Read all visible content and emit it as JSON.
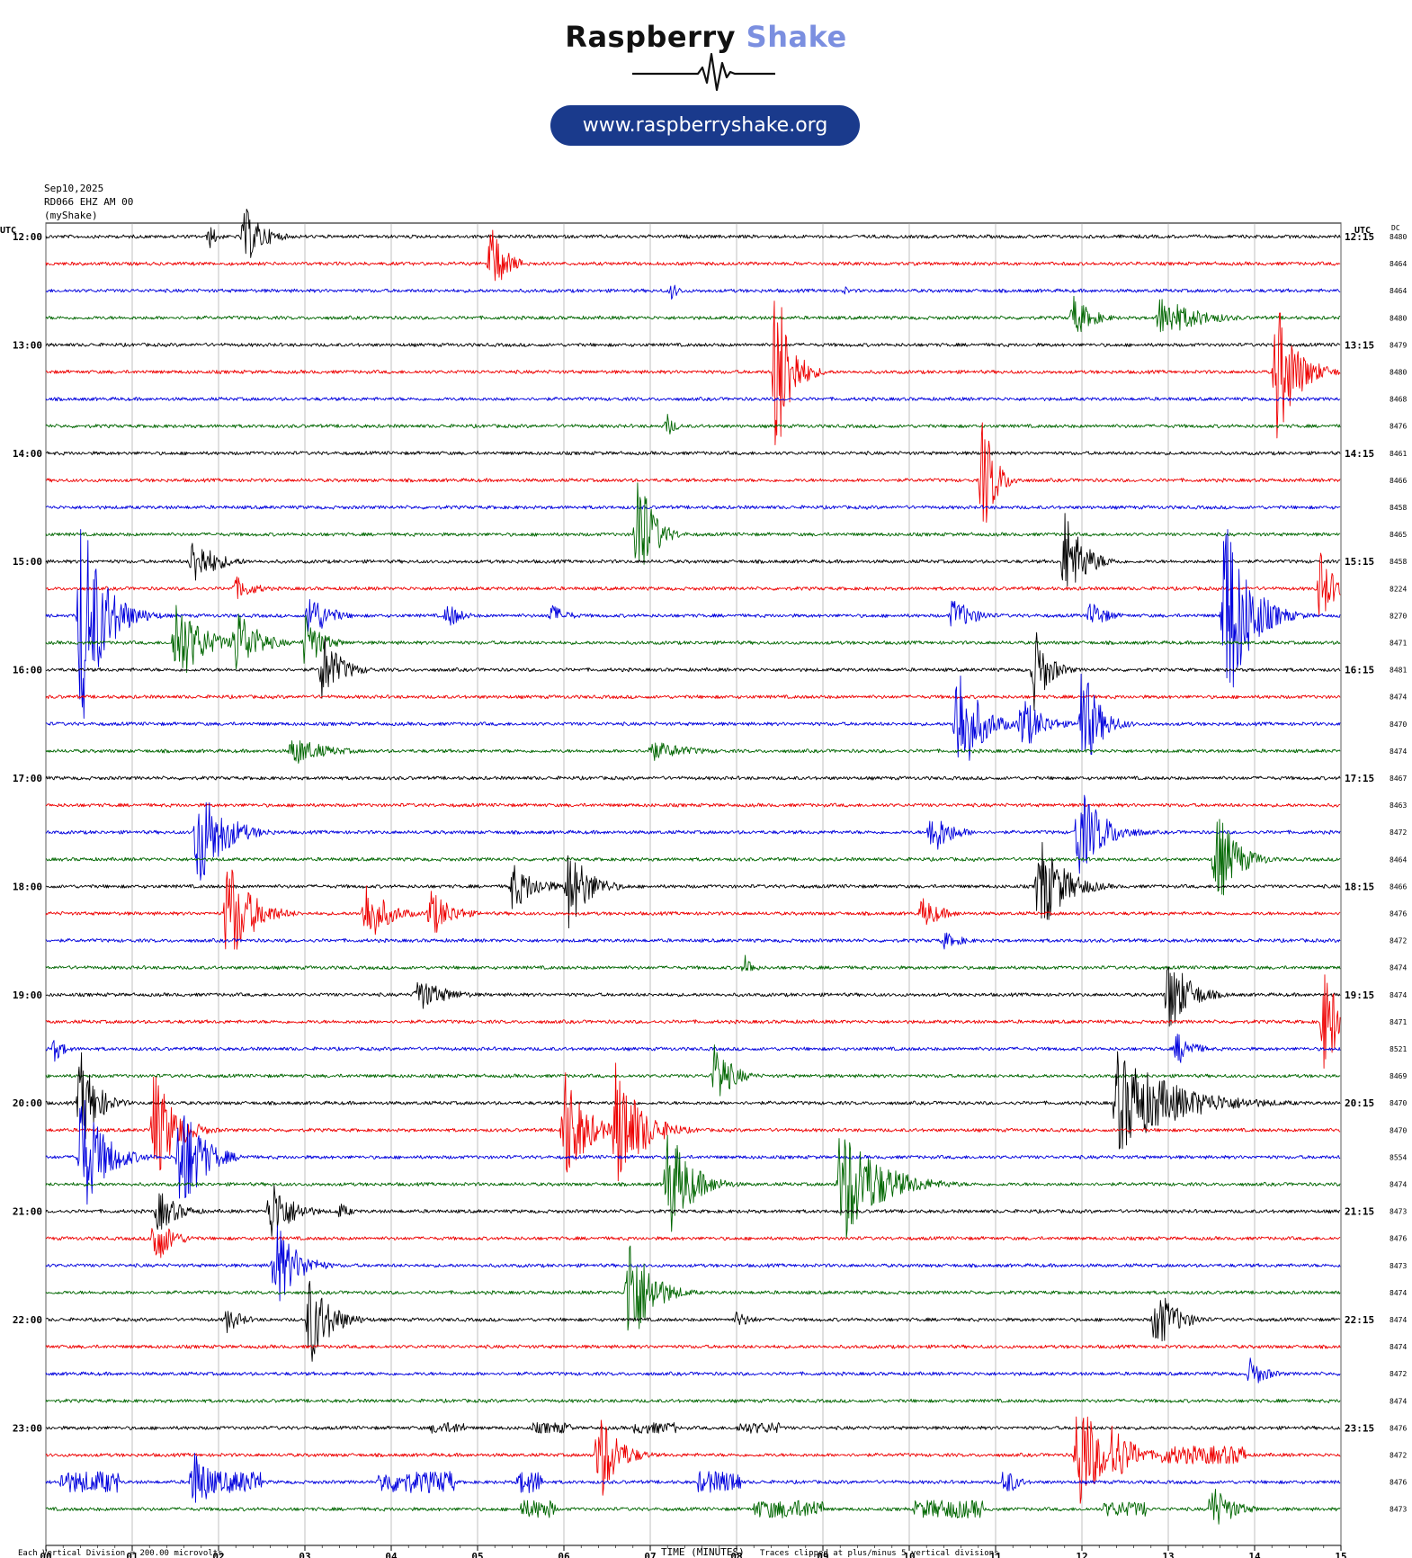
{
  "logo": {
    "word1": "Raspberry",
    "word2": "Shake",
    "url": "www.raspberryshake.org",
    "colors": {
      "word1": "#111111",
      "word2": "#7b8fe0",
      "pill": "#1a3a8c"
    }
  },
  "header": {
    "date": "Sep10,2025",
    "station": "RD066 EHZ AM 00",
    "source": "(myShake)"
  },
  "chart_data": {
    "type": "line",
    "title": "",
    "left_axis_label": "UTC",
    "right_axis_label": "UTC",
    "dc_label": "DC",
    "xlabel": "TIME (MINUTES)",
    "x_range": [
      0,
      15
    ],
    "x_ticks": [
      "00",
      "01",
      "02",
      "03",
      "04",
      "05",
      "06",
      "07",
      "08",
      "09",
      "10",
      "11",
      "12",
      "13",
      "14",
      "15"
    ],
    "grid": true,
    "trace_colors": [
      "#000000",
      "#ee0000",
      "#0000dd",
      "#006600"
    ],
    "left_hour_labels": [
      "12:00",
      "13:00",
      "14:00",
      "15:00",
      "16:00",
      "17:00",
      "18:00",
      "19:00",
      "20:00",
      "21:00",
      "22:00",
      "23:00"
    ],
    "right_hour_labels": [
      "12:15",
      "13:15",
      "14:15",
      "15:15",
      "16:15",
      "17:15",
      "18:15",
      "19:15",
      "20:15",
      "21:15",
      "22:15",
      "23:15"
    ],
    "dc_values": [
      "8480",
      "8464",
      "8464",
      "8480",
      "8479",
      "8480",
      "8468",
      "8476",
      "8461",
      "8466",
      "8458",
      "8465",
      "8458",
      "8224",
      "8270",
      "8471",
      "8481",
      "8474",
      "8470",
      "8474",
      "8467",
      "8463",
      "8472",
      "8464",
      "8466",
      "8476",
      "8472",
      "8474",
      "8474",
      "8471",
      "8521",
      "8469",
      "8470",
      "8470",
      "8554",
      "8474",
      "8473",
      "8476",
      "8473",
      "8474",
      "8474",
      "8474",
      "8472",
      "8474",
      "8476",
      "8472",
      "8476",
      "8473"
    ],
    "events": [
      {
        "row": 0,
        "t": 2.3,
        "amp": 35,
        "dur": 0.45
      },
      {
        "row": 0,
        "t": 1.9,
        "amp": 14,
        "dur": 0.2
      },
      {
        "row": 1,
        "t": 5.15,
        "amp": 45,
        "dur": 0.35
      },
      {
        "row": 2,
        "t": 7.25,
        "amp": 10,
        "dur": 0.2
      },
      {
        "row": 2,
        "t": 9.25,
        "amp": 6,
        "dur": 0.15
      },
      {
        "row": 3,
        "t": 11.9,
        "amp": 25,
        "dur": 0.45
      },
      {
        "row": 3,
        "t": 12.9,
        "amp": 25,
        "dur": 0.9
      },
      {
        "row": 5,
        "t": 8.45,
        "amp": 120,
        "dur": 0.35
      },
      {
        "row": 5,
        "t": 14.25,
        "amp": 85,
        "dur": 0.5
      },
      {
        "row": 7,
        "t": 7.2,
        "amp": 14,
        "dur": 0.2
      },
      {
        "row": 9,
        "t": 10.85,
        "amp": 75,
        "dur": 0.3
      },
      {
        "row": 11,
        "t": 6.85,
        "amp": 85,
        "dur": 0.35
      },
      {
        "row": 12,
        "t": 1.7,
        "amp": 30,
        "dur": 0.55
      },
      {
        "row": 12,
        "t": 11.8,
        "amp": 60,
        "dur": 0.45
      },
      {
        "row": 13,
        "t": 14.75,
        "amp": 45,
        "dur": 0.35
      },
      {
        "row": 13,
        "t": 2.2,
        "amp": 14,
        "dur": 0.5
      },
      {
        "row": 14,
        "t": 0.4,
        "amp": 135,
        "dur": 0.55
      },
      {
        "row": 14,
        "t": 3.05,
        "amp": 30,
        "dur": 0.45
      },
      {
        "row": 14,
        "t": 4.65,
        "amp": 16,
        "dur": 0.35
      },
      {
        "row": 14,
        "t": 5.85,
        "amp": 14,
        "dur": 0.4
      },
      {
        "row": 14,
        "t": 10.5,
        "amp": 20,
        "dur": 0.55
      },
      {
        "row": 14,
        "t": 12.1,
        "amp": 18,
        "dur": 0.4
      },
      {
        "row": 14,
        "t": 13.65,
        "amp": 135,
        "dur": 0.55
      },
      {
        "row": 15,
        "t": 1.5,
        "amp": 55,
        "dur": 0.6
      },
      {
        "row": 15,
        "t": 2.2,
        "amp": 45,
        "dur": 0.5
      },
      {
        "row": 15,
        "t": 3.0,
        "amp": 35,
        "dur": 0.4
      },
      {
        "row": 16,
        "t": 3.2,
        "amp": 42,
        "dur": 0.45
      },
      {
        "row": 16,
        "t": 11.45,
        "amp": 50,
        "dur": 0.35
      },
      {
        "row": 18,
        "t": 10.55,
        "amp": 80,
        "dur": 0.5
      },
      {
        "row": 18,
        "t": 11.3,
        "amp": 35,
        "dur": 0.5
      },
      {
        "row": 18,
        "t": 12.0,
        "amp": 70,
        "dur": 0.4
      },
      {
        "row": 19,
        "t": 2.85,
        "amp": 18,
        "dur": 0.8
      },
      {
        "row": 19,
        "t": 7.0,
        "amp": 12,
        "dur": 1.0
      },
      {
        "row": 22,
        "t": 1.75,
        "amp": 70,
        "dur": 0.6
      },
      {
        "row": 22,
        "t": 10.25,
        "amp": 30,
        "dur": 0.45
      },
      {
        "row": 22,
        "t": 11.95,
        "amp": 55,
        "dur": 0.6
      },
      {
        "row": 23,
        "t": 13.55,
        "amp": 60,
        "dur": 0.5
      },
      {
        "row": 24,
        "t": 5.4,
        "amp": 28,
        "dur": 0.6
      },
      {
        "row": 24,
        "t": 6.05,
        "amp": 50,
        "dur": 0.5
      },
      {
        "row": 24,
        "t": 11.5,
        "amp": 60,
        "dur": 0.6
      },
      {
        "row": 25,
        "t": 2.1,
        "amp": 70,
        "dur": 0.55
      },
      {
        "row": 25,
        "t": 3.7,
        "amp": 40,
        "dur": 0.5
      },
      {
        "row": 25,
        "t": 4.45,
        "amp": 30,
        "dur": 0.5
      },
      {
        "row": 25,
        "t": 10.15,
        "amp": 20,
        "dur": 0.45
      },
      {
        "row": 26,
        "t": 10.4,
        "amp": 10,
        "dur": 0.5
      },
      {
        "row": 27,
        "t": 8.1,
        "amp": 15,
        "dur": 0.2
      },
      {
        "row": 28,
        "t": 4.3,
        "amp": 20,
        "dur": 0.7
      },
      {
        "row": 28,
        "t": 13.0,
        "amp": 50,
        "dur": 0.5
      },
      {
        "row": 29,
        "t": 14.8,
        "amp": 60,
        "dur": 0.5
      },
      {
        "row": 30,
        "t": 0.1,
        "amp": 15,
        "dur": 0.25
      },
      {
        "row": 30,
        "t": 13.1,
        "amp": 20,
        "dur": 0.4
      },
      {
        "row": 31,
        "t": 7.75,
        "amp": 40,
        "dur": 0.4
      },
      {
        "row": 32,
        "t": 0.4,
        "amp": 60,
        "dur": 0.4
      },
      {
        "row": 32,
        "t": 12.4,
        "amp": 60,
        "dur": 1.4
      },
      {
        "row": 33,
        "t": 1.25,
        "amp": 70,
        "dur": 0.5
      },
      {
        "row": 33,
        "t": 6.0,
        "amp": 75,
        "dur": 0.5
      },
      {
        "row": 33,
        "t": 6.6,
        "amp": 80,
        "dur": 0.6
      },
      {
        "row": 34,
        "t": 0.4,
        "amp": 80,
        "dur": 0.55
      },
      {
        "row": 34,
        "t": 1.55,
        "amp": 80,
        "dur": 0.5
      },
      {
        "row": 35,
        "t": 7.2,
        "amp": 70,
        "dur": 0.55
      },
      {
        "row": 35,
        "t": 9.2,
        "amp": 75,
        "dur": 0.9
      },
      {
        "row": 36,
        "t": 1.3,
        "amp": 25,
        "dur": 0.5
      },
      {
        "row": 36,
        "t": 2.6,
        "amp": 40,
        "dur": 0.5
      },
      {
        "row": 36,
        "t": 3.4,
        "amp": 10,
        "dur": 0.3
      },
      {
        "row": 37,
        "t": 1.25,
        "amp": 35,
        "dur": 0.4
      },
      {
        "row": 38,
        "t": 2.65,
        "amp": 55,
        "dur": 0.5
      },
      {
        "row": 39,
        "t": 6.75,
        "amp": 80,
        "dur": 0.5
      },
      {
        "row": 40,
        "t": 3.05,
        "amp": 55,
        "dur": 0.5
      },
      {
        "row": 40,
        "t": 2.1,
        "amp": 15,
        "dur": 0.4
      },
      {
        "row": 40,
        "t": 8.0,
        "amp": 10,
        "dur": 0.4
      },
      {
        "row": 40,
        "t": 12.85,
        "amp": 40,
        "dur": 0.5
      },
      {
        "row": 42,
        "t": 13.95,
        "amp": 18,
        "dur": 0.4
      },
      {
        "row": 44,
        "t": 4.65,
        "amp": 6,
        "dur": 0.4,
        "band": true
      },
      {
        "row": 44,
        "t": 5.85,
        "amp": 6,
        "dur": 0.45,
        "band": true
      },
      {
        "row": 44,
        "t": 7.05,
        "amp": 6,
        "dur": 0.5,
        "band": true
      },
      {
        "row": 44,
        "t": 8.25,
        "amp": 6,
        "dur": 0.5,
        "band": true
      },
      {
        "row": 45,
        "t": 6.4,
        "amp": 60,
        "dur": 0.45
      },
      {
        "row": 45,
        "t": 11.95,
        "amp": 80,
        "dur": 0.5
      },
      {
        "row": 45,
        "t": 12.35,
        "amp": 40,
        "dur": 0.5
      },
      {
        "row": 45,
        "t": 13.4,
        "amp": 10,
        "dur": 1.0,
        "band": true
      },
      {
        "row": 46,
        "t": 0.5,
        "amp": 12,
        "dur": 0.7,
        "band": true
      },
      {
        "row": 46,
        "t": 1.7,
        "amp": 40,
        "dur": 0.5
      },
      {
        "row": 46,
        "t": 2.2,
        "amp": 12,
        "dur": 0.6,
        "band": true
      },
      {
        "row": 46,
        "t": 4.3,
        "amp": 12,
        "dur": 0.9,
        "band": true
      },
      {
        "row": 46,
        "t": 5.6,
        "amp": 12,
        "dur": 0.3,
        "band": true
      },
      {
        "row": 46,
        "t": 7.8,
        "amp": 12,
        "dur": 0.5,
        "band": true
      },
      {
        "row": 46,
        "t": 11.1,
        "amp": 20,
        "dur": 0.3
      },
      {
        "row": 47,
        "t": 5.7,
        "amp": 10,
        "dur": 0.4,
        "band": true
      },
      {
        "row": 47,
        "t": 8.6,
        "amp": 10,
        "dur": 0.8,
        "band": true
      },
      {
        "row": 47,
        "t": 10.45,
        "amp": 10,
        "dur": 0.8,
        "band": true
      },
      {
        "row": 47,
        "t": 13.5,
        "amp": 30,
        "dur": 0.5
      },
      {
        "row": 47,
        "t": 12.5,
        "amp": 8,
        "dur": 0.5,
        "band": true
      }
    ]
  },
  "footer": {
    "division_note": "Each Vertical Division =  200.00 microvolts",
    "clip_note": "Traces clipped at plus/minus 5 vertical divisions",
    "xlabel": "TIME (MINUTES)"
  }
}
